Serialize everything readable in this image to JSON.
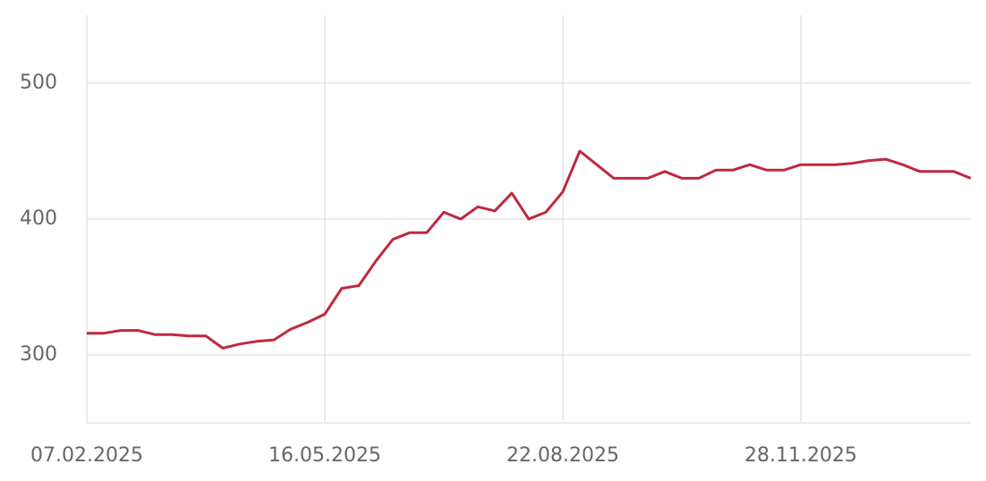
{
  "chart_data": {
    "type": "line",
    "x": [
      "2025-02-07",
      "2025-02-14",
      "2025-02-21",
      "2025-02-28",
      "2025-03-07",
      "2025-03-14",
      "2025-03-21",
      "2025-03-28",
      "2025-04-04",
      "2025-04-11",
      "2025-04-18",
      "2025-04-25",
      "2025-05-02",
      "2025-05-09",
      "2025-05-16",
      "2025-05-23",
      "2025-05-30",
      "2025-06-06",
      "2025-06-13",
      "2025-06-20",
      "2025-06-27",
      "2025-07-04",
      "2025-07-11",
      "2025-07-18",
      "2025-07-25",
      "2025-08-01",
      "2025-08-08",
      "2025-08-15",
      "2025-08-22",
      "2025-08-29",
      "2025-09-05",
      "2025-09-12",
      "2025-09-19",
      "2025-09-26",
      "2025-10-03",
      "2025-10-10",
      "2025-10-17",
      "2025-10-24",
      "2025-10-31",
      "2025-11-07",
      "2025-11-14",
      "2025-11-21",
      "2025-11-28",
      "2025-12-05",
      "2025-12-12",
      "2025-12-19",
      "2025-12-26",
      "2026-01-02",
      "2026-01-09",
      "2026-01-16",
      "2026-01-23",
      "2026-01-30",
      "2026-02-06"
    ],
    "values": [
      316,
      316,
      318,
      318,
      315,
      315,
      314,
      314,
      305,
      308,
      310,
      311,
      319,
      324,
      330,
      349,
      351,
      369,
      385,
      390,
      390,
      405,
      400,
      409,
      406,
      419,
      400,
      405,
      420,
      450,
      440,
      430,
      430,
      430,
      435,
      430,
      430,
      436,
      436,
      440,
      436,
      436,
      440,
      440,
      440,
      441,
      443,
      444,
      440,
      435,
      435,
      435,
      430
    ],
    "color": "#c0283f",
    "xlim": [
      "2025-02-07",
      "2026-02-06"
    ],
    "xticks": [
      {
        "value": "2025-02-07",
        "label": "07.02.2025"
      },
      {
        "value": "2025-05-16",
        "label": "16.05.2025"
      },
      {
        "value": "2025-08-22",
        "label": "22.08.2025"
      },
      {
        "value": "2025-11-28",
        "label": "28.11.2025"
      }
    ],
    "ylim": [
      250,
      550
    ],
    "yticks": [
      300,
      400,
      500
    ],
    "grid": true
  }
}
